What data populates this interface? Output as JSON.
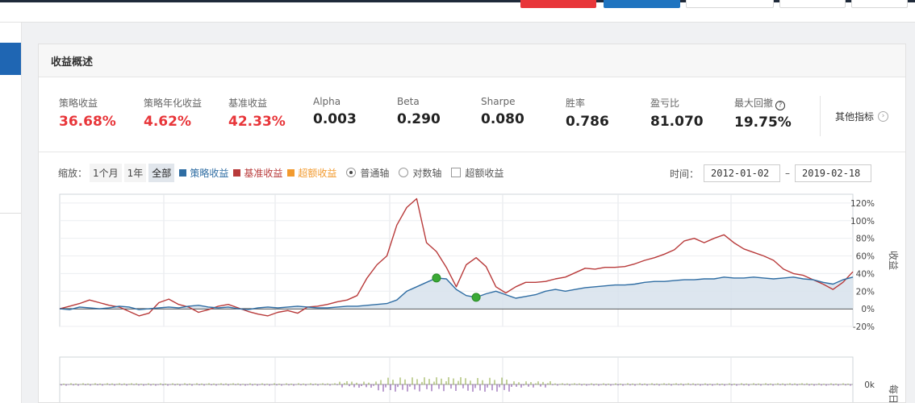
{
  "panel": {
    "title": "收益概述"
  },
  "metrics": [
    {
      "label": "策略收益",
      "value": "36.68%",
      "color": "#e8363a"
    },
    {
      "label": "策略年化收益",
      "value": "4.62%",
      "color": "#e8363a"
    },
    {
      "label": "基准收益",
      "value": "42.33%",
      "color": "#e8363a"
    },
    {
      "label": "Alpha",
      "value": "0.003",
      "color": "#222222"
    },
    {
      "label": "Beta",
      "value": "0.290",
      "color": "#222222"
    },
    {
      "label": "Sharpe",
      "value": "0.080",
      "color": "#222222"
    },
    {
      "label": "胜率",
      "value": "0.786",
      "color": "#222222"
    },
    {
      "label": "盈亏比",
      "value": "81.070",
      "color": "#222222"
    },
    {
      "label": "最大回撤",
      "value": "19.75%",
      "color": "#222222"
    }
  ],
  "other_indicators": "其他指标",
  "controls": {
    "zoom_label": "缩放：",
    "zoom_options": [
      "1个月",
      "1年",
      "全部"
    ],
    "zoom_selected": "全部",
    "legend": [
      {
        "name": "策略收益",
        "color": "#2f6da3"
      },
      {
        "name": "基准收益",
        "color": "#b83a3a"
      },
      {
        "name": "超额收益",
        "color": "#f29a2e"
      }
    ],
    "axis_normal": "普通轴",
    "axis_log": "对数轴",
    "excess_checkbox": "超额收益",
    "time_label": "时间：",
    "start_date": "2012-01-02",
    "end_date": "2019-02-18",
    "dash": "–"
  },
  "chart_data": {
    "type": "line",
    "ylabel": "收益",
    "y_ticks": [
      "120%",
      "100%",
      "80%",
      "60%",
      "40%",
      "20%",
      "0%",
      "-20%"
    ],
    "ylim": [
      -20,
      130
    ],
    "x_range": [
      "2012-01-02",
      "2019-02-18"
    ],
    "series": [
      {
        "name": "策略收益",
        "color": "#2f6da3",
        "values": [
          0,
          -1,
          2,
          1,
          0,
          1,
          3,
          2,
          -1,
          0,
          1,
          2,
          1,
          3,
          4,
          2,
          1,
          2,
          0,
          -1,
          1,
          2,
          1,
          2,
          3,
          2,
          1,
          1,
          2,
          3,
          3,
          4,
          5,
          6,
          10,
          20,
          25,
          30,
          35,
          34,
          22,
          15,
          13,
          17,
          20,
          16,
          12,
          14,
          16,
          20,
          22,
          20,
          22,
          24,
          25,
          26,
          27,
          27,
          28,
          30,
          31,
          31,
          32,
          33,
          33,
          34,
          34,
          36,
          35,
          35,
          36,
          35,
          34,
          35,
          36,
          34,
          33,
          30,
          28,
          33,
          36
        ]
      },
      {
        "name": "基准收益",
        "color": "#b83a3a",
        "values": [
          0,
          3,
          6,
          10,
          7,
          4,
          2,
          -3,
          -8,
          -5,
          7,
          11,
          5,
          2,
          -4,
          -1,
          3,
          5,
          1,
          -3,
          -6,
          -8,
          -4,
          -2,
          -5,
          2,
          3,
          5,
          8,
          10,
          15,
          35,
          50,
          60,
          95,
          115,
          125,
          75,
          65,
          47,
          25,
          50,
          58,
          48,
          25,
          18,
          25,
          30,
          30,
          31,
          34,
          36,
          41,
          46,
          45,
          47,
          47,
          48,
          51,
          55,
          58,
          62,
          67,
          77,
          80,
          75,
          80,
          84,
          75,
          68,
          64,
          60,
          55,
          45,
          40,
          38,
          33,
          28,
          22,
          30,
          42
        ]
      }
    ],
    "markers": [
      {
        "series": "策略收益",
        "x_index": 38,
        "y": 35
      },
      {
        "series": "策略收益",
        "x_index": 42,
        "y": 13
      }
    ],
    "lower_panel": {
      "ylabel": "每日",
      "y_tick": "0k"
    }
  }
}
